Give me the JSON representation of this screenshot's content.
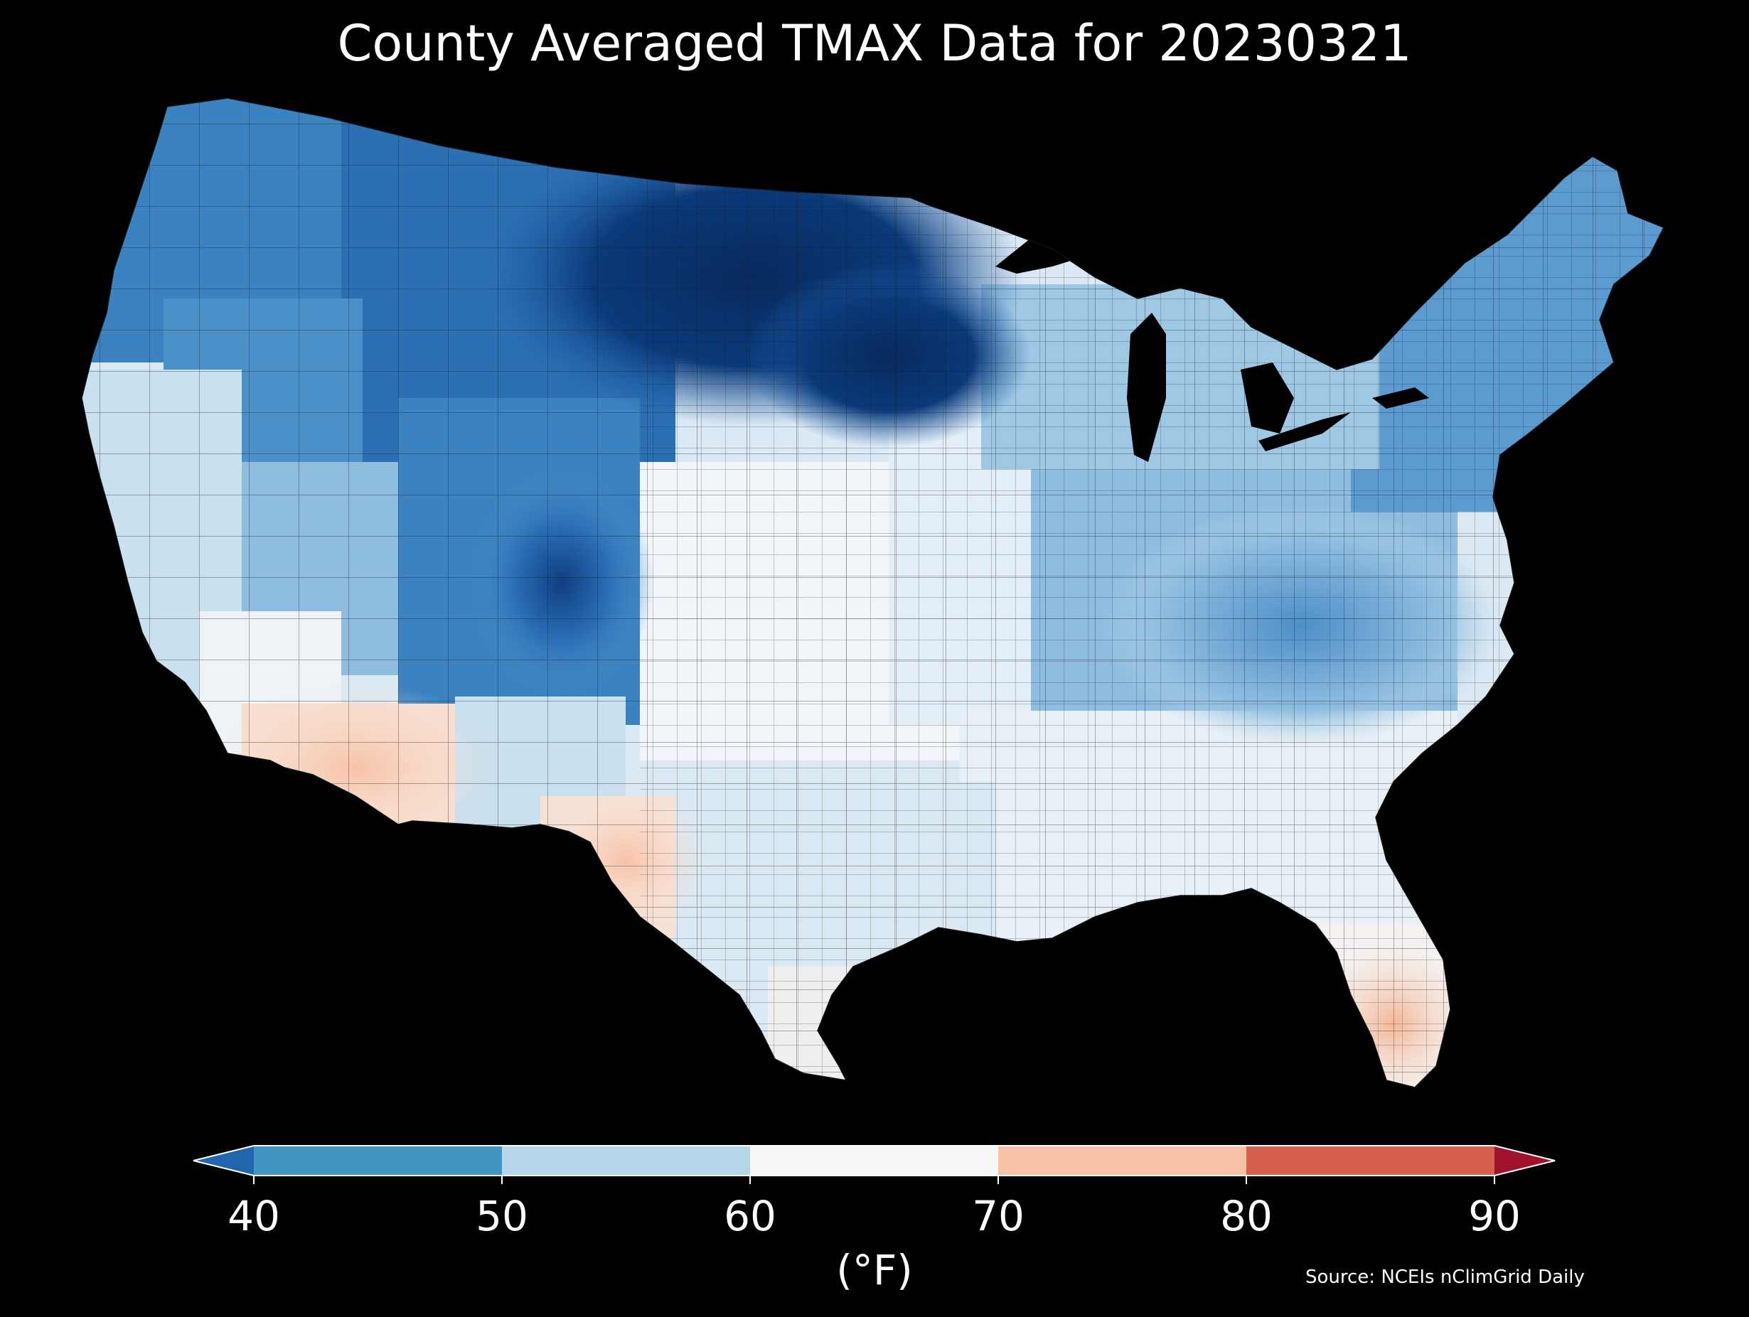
{
  "title": "County Averaged TMAX Data for 20230321",
  "source": "Source: NCEIs nClimGrid Daily",
  "colorbar": {
    "unit_label": "(°F)",
    "ticks": [
      "40",
      "50",
      "60",
      "70",
      "80",
      "90"
    ],
    "bins": [
      {
        "range": "<40",
        "color": "#2166ac"
      },
      {
        "range": "40-50",
        "color": "#4393c3"
      },
      {
        "range": "50-60",
        "color": "#b4d6e8"
      },
      {
        "range": "60-70",
        "color": "#f7f7f7"
      },
      {
        "range": "70-80",
        "color": "#f7c2a6"
      },
      {
        "range": "80-90",
        "color": "#d6604d"
      },
      {
        "range": ">90",
        "color": "#a1122c"
      }
    ],
    "extend": "both"
  },
  "map": {
    "region": "contiguous-united-states",
    "units": "county",
    "variable": "TMAX",
    "background": "#000000",
    "regional_values": [
      {
        "region": "north-central-plains-minnesota-dakotas",
        "color": "#08306b"
      },
      {
        "region": "northern-rockies-montana-wyoming",
        "color": "#1f5fa8"
      },
      {
        "region": "pacific-northwest",
        "color": "#3b83c0"
      },
      {
        "region": "great-basin",
        "color": "#4a90c9"
      },
      {
        "region": "colorado-rockies",
        "color": "#2a6db5"
      },
      {
        "region": "california-coast",
        "color": "#c9e0ef"
      },
      {
        "region": "desert-southwest",
        "color": "#f9d8c5"
      },
      {
        "region": "southern-plains-texas",
        "color": "#dbe9f4"
      },
      {
        "region": "midwest-central",
        "color": "#eef3f8"
      },
      {
        "region": "appalachians-ohio-valley",
        "color": "#6aa5d4"
      },
      {
        "region": "northeast-new-england",
        "color": "#5b9bd0"
      },
      {
        "region": "gulf-coast-southeast",
        "color": "#e8f0f7"
      },
      {
        "region": "south-florida",
        "color": "#f6c5aa"
      }
    ]
  }
}
